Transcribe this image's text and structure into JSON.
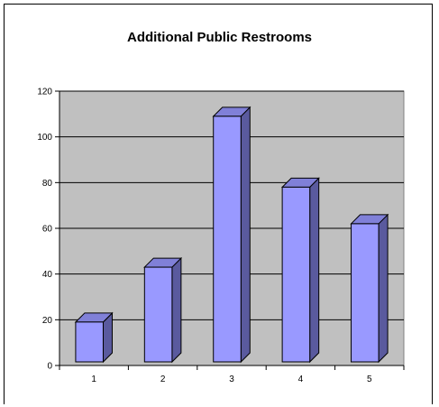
{
  "chart_data": {
    "type": "bar",
    "title": "Additional Public Restrooms",
    "xlabel": "",
    "ylabel": "",
    "categories": [
      "1",
      "2",
      "3",
      "4",
      "5"
    ],
    "values": [
      19,
      43,
      109,
      78,
      62
    ],
    "ylim": [
      0,
      120
    ],
    "yticks": [
      0,
      20,
      40,
      60,
      80,
      100,
      120
    ],
    "grid": true,
    "style": "3d-column",
    "colors": {
      "bar_front": "#9999ff",
      "bar_side": "#5a5a9e",
      "bar_top": "#8080d8",
      "plot_background": "#c0c0c0",
      "gridline": "#000000"
    }
  }
}
